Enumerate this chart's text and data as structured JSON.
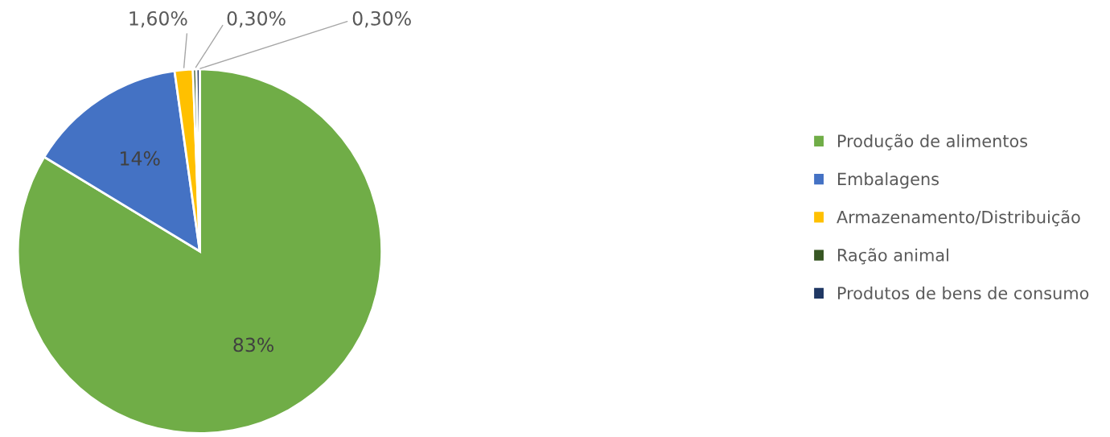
{
  "chart_data": {
    "type": "pie",
    "categories": [
      "Produção de alimentos",
      "Embalagens",
      "Armazenamento/Distribuição",
      "Ração animal",
      "Produtos de bens de consumo"
    ],
    "values": [
      83,
      14,
      1.6,
      0.3,
      0.3
    ],
    "value_labels": [
      "83%",
      "14%",
      "1,60%",
      "0,30%",
      "0,30%"
    ],
    "colors": [
      "#70ad47",
      "#4472c4",
      "#ffc000",
      "#375623",
      "#203864"
    ],
    "legend": "right"
  }
}
